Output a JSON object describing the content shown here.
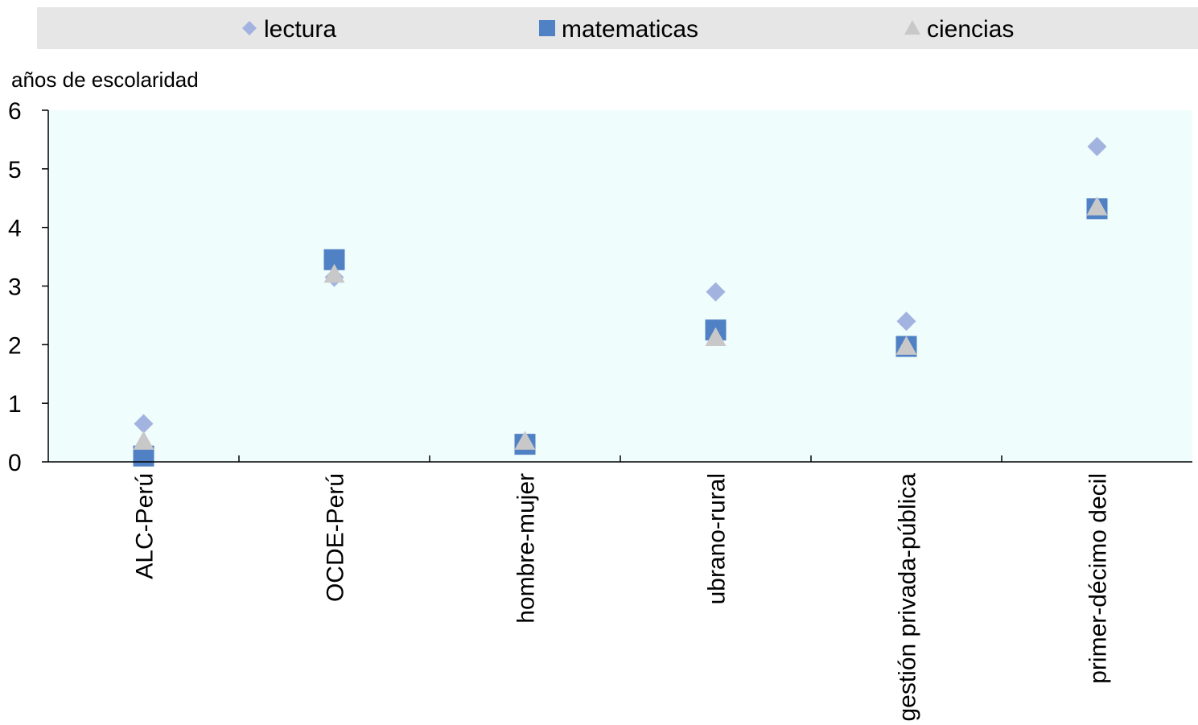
{
  "chart_data": {
    "type": "scatter",
    "title": "",
    "xlabel": "",
    "ylabel": "años de escolaridad",
    "ylim": [
      0,
      6
    ],
    "yticks": [
      "0",
      "1",
      "2",
      "3",
      "4",
      "5",
      "6"
    ],
    "categories": [
      "ALC-Perú",
      "OCDE-Perú",
      "hombre-mujer",
      "ubrano-rural",
      "gestión privada-pública",
      "primer-décimo decil"
    ],
    "legend_position": "top",
    "grid": false,
    "series": [
      {
        "name": "lectura",
        "marker": "diamond",
        "color": "#a3b3e0",
        "values": [
          0.65,
          3.15,
          null,
          2.9,
          2.4,
          5.38
        ]
      },
      {
        "name": "matematicas",
        "marker": "square",
        "color": "#4f81c4",
        "values": [
          0.1,
          3.45,
          0.3,
          2.25,
          1.97,
          4.32
        ]
      },
      {
        "name": "ciencias",
        "marker": "triangle",
        "color": "#c8c8c8",
        "values": [
          0.35,
          3.2,
          0.35,
          2.12,
          1.97,
          4.35
        ]
      }
    ],
    "colors": {
      "plot_background": "#f0fdfd",
      "legend_background": "#e6e6e6",
      "axis": "#000000"
    }
  }
}
